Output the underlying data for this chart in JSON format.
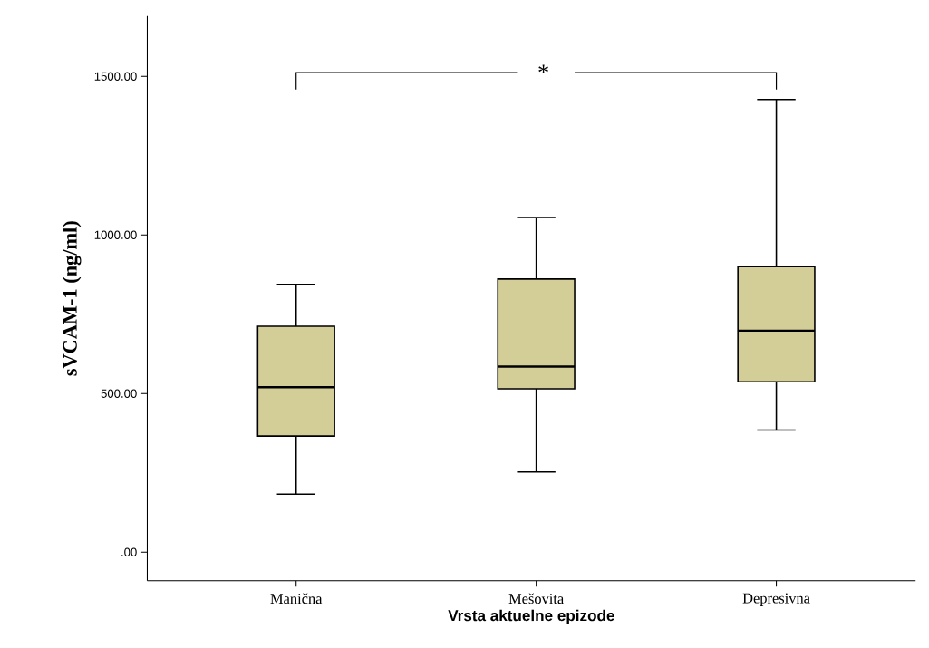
{
  "chart_data": {
    "type": "box",
    "xlabel": "Vrsta aktuelne epizode",
    "ylabel": "sVCAM-1 (ng/ml)",
    "categories": [
      "Manična",
      "Mešovita",
      "Depresivna"
    ],
    "series": [
      {
        "color": "#d3ce97",
        "boxes": [
          {
            "low": 183,
            "q1": 366,
            "median": 520,
            "q3": 712,
            "high": 844
          },
          {
            "low": 253,
            "q1": 515,
            "median": 585,
            "q3": 861,
            "high": 1055
          },
          {
            "low": 385,
            "q1": 537,
            "median": 698,
            "q3": 900,
            "high": 1427
          }
        ]
      }
    ],
    "ylim": [
      -90,
      1690
    ],
    "yticks": [
      {
        "value": 0,
        "label": ".00"
      },
      {
        "value": 500,
        "label": "500.00"
      },
      {
        "value": 1000,
        "label": "1000.00"
      },
      {
        "value": 1500,
        "label": "1500.00"
      }
    ],
    "annotations": [
      "*"
    ],
    "grid": false
  }
}
